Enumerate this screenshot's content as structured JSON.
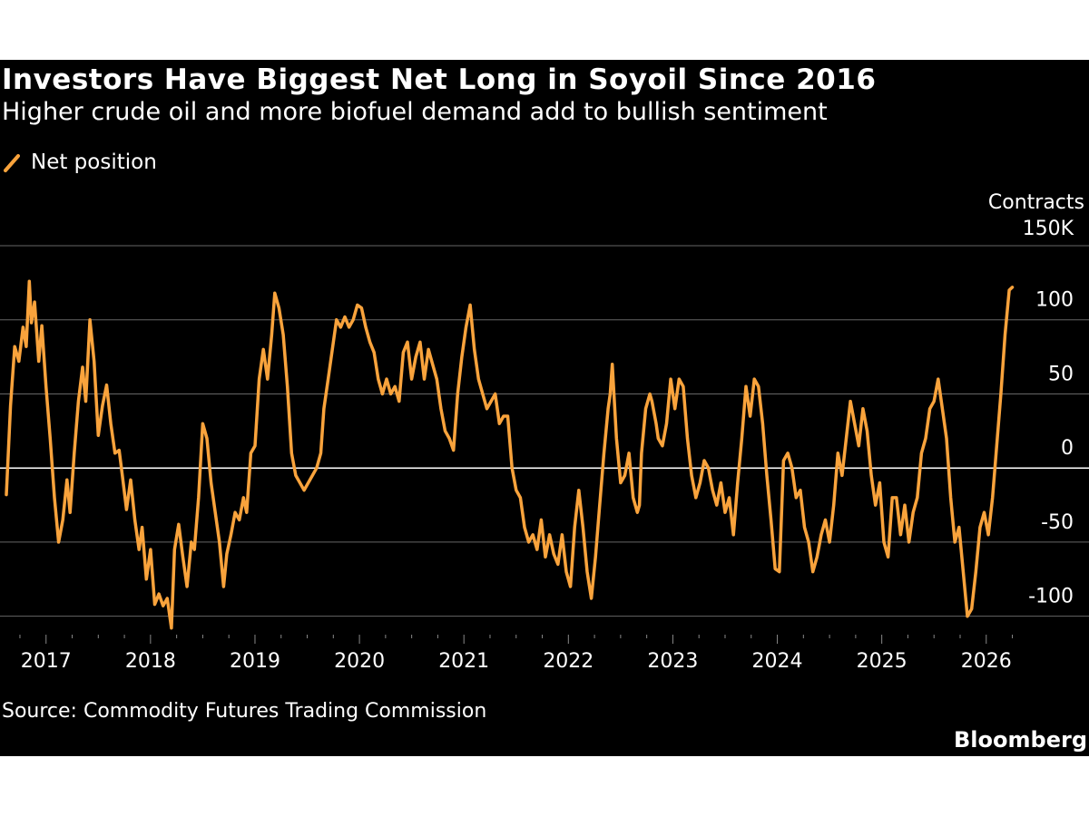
{
  "header": {
    "title": "Investors Have Biggest Net Long in Soyoil Since 2016",
    "subtitle": "Higher crude oil and more biofuel demand add to bullish sentiment"
  },
  "legend": {
    "label": "Net position",
    "color": "#f9a33c"
  },
  "footer": {
    "source": "Source: Commodity Futures Trading Commission",
    "brand": "Bloomberg"
  },
  "colors": {
    "background": "#000000",
    "line": "#f9a33c",
    "grid": "#666666",
    "zero_line": "#ffffff",
    "text": "#ffffff"
  },
  "chart_data": {
    "type": "line",
    "title": "Investors Have Biggest Net Long in Soyoil Since 2016",
    "subtitle": "Higher crude oil and more biofuel demand add to bullish sentiment",
    "xlabel": "",
    "ylabel": "Contracts",
    "ylim": [
      -110,
      150
    ],
    "xlim": [
      2016.62,
      2026.28
    ],
    "y_ticks": [
      {
        "value": 150,
        "label": "150K"
      },
      {
        "value": 100,
        "label": "100"
      },
      {
        "value": 50,
        "label": "50"
      },
      {
        "value": 0,
        "label": "0"
      },
      {
        "value": -50,
        "label": "-50"
      },
      {
        "value": -100,
        "label": "-100"
      }
    ],
    "x_ticks": [
      {
        "value": 2017,
        "label": "2017"
      },
      {
        "value": 2018,
        "label": "2018"
      },
      {
        "value": 2019,
        "label": "2019"
      },
      {
        "value": 2020,
        "label": "2020"
      },
      {
        "value": 2021,
        "label": "2021"
      },
      {
        "value": 2022,
        "label": "2022"
      },
      {
        "value": 2023,
        "label": "2023"
      },
      {
        "value": 2024,
        "label": "2024"
      },
      {
        "value": 2025,
        "label": "2025"
      },
      {
        "value": 2026,
        "label": "2026"
      }
    ],
    "grid": true,
    "legend_position": "top-left",
    "series": [
      {
        "name": "Net position",
        "unit": "thousand contracts",
        "points": [
          [
            2016.62,
            -18
          ],
          [
            2016.66,
            42
          ],
          [
            2016.7,
            82
          ],
          [
            2016.74,
            72
          ],
          [
            2016.78,
            95
          ],
          [
            2016.81,
            82
          ],
          [
            2016.84,
            126
          ],
          [
            2016.86,
            98
          ],
          [
            2016.89,
            112
          ],
          [
            2016.93,
            72
          ],
          [
            2016.96,
            96
          ],
          [
            2017.0,
            55
          ],
          [
            2017.04,
            20
          ],
          [
            2017.08,
            -20
          ],
          [
            2017.12,
            -50
          ],
          [
            2017.16,
            -35
          ],
          [
            2017.2,
            -8
          ],
          [
            2017.23,
            -30
          ],
          [
            2017.27,
            10
          ],
          [
            2017.31,
            45
          ],
          [
            2017.35,
            68
          ],
          [
            2017.38,
            45
          ],
          [
            2017.42,
            100
          ],
          [
            2017.46,
            72
          ],
          [
            2017.5,
            22
          ],
          [
            2017.54,
            42
          ],
          [
            2017.58,
            56
          ],
          [
            2017.62,
            30
          ],
          [
            2017.66,
            10
          ],
          [
            2017.7,
            12
          ],
          [
            2017.73,
            -5
          ],
          [
            2017.77,
            -28
          ],
          [
            2017.81,
            -8
          ],
          [
            2017.85,
            -35
          ],
          [
            2017.89,
            -55
          ],
          [
            2017.92,
            -40
          ],
          [
            2017.96,
            -75
          ],
          [
            2018.0,
            -55
          ],
          [
            2018.04,
            -92
          ],
          [
            2018.08,
            -85
          ],
          [
            2018.12,
            -93
          ],
          [
            2018.16,
            -88
          ],
          [
            2018.2,
            -108
          ],
          [
            2018.23,
            -55
          ],
          [
            2018.27,
            -38
          ],
          [
            2018.31,
            -60
          ],
          [
            2018.35,
            -80
          ],
          [
            2018.39,
            -50
          ],
          [
            2018.42,
            -55
          ],
          [
            2018.46,
            -20
          ],
          [
            2018.5,
            30
          ],
          [
            2018.54,
            20
          ],
          [
            2018.58,
            -10
          ],
          [
            2018.62,
            -30
          ],
          [
            2018.66,
            -50
          ],
          [
            2018.7,
            -80
          ],
          [
            2018.73,
            -58
          ],
          [
            2018.77,
            -45
          ],
          [
            2018.81,
            -30
          ],
          [
            2018.85,
            -35
          ],
          [
            2018.89,
            -20
          ],
          [
            2018.92,
            -30
          ],
          [
            2018.96,
            10
          ],
          [
            2019.0,
            15
          ],
          [
            2019.04,
            60
          ],
          [
            2019.08,
            80
          ],
          [
            2019.12,
            60
          ],
          [
            2019.16,
            90
          ],
          [
            2019.19,
            118
          ],
          [
            2019.23,
            108
          ],
          [
            2019.27,
            90
          ],
          [
            2019.31,
            55
          ],
          [
            2019.35,
            10
          ],
          [
            2019.39,
            -5
          ],
          [
            2019.43,
            -10
          ],
          [
            2019.47,
            -15
          ],
          [
            2019.51,
            -10
          ],
          [
            2019.55,
            -5
          ],
          [
            2019.59,
            0
          ],
          [
            2019.63,
            10
          ],
          [
            2019.66,
            40
          ],
          [
            2019.7,
            60
          ],
          [
            2019.74,
            80
          ],
          [
            2019.78,
            100
          ],
          [
            2019.82,
            95
          ],
          [
            2019.86,
            102
          ],
          [
            2019.9,
            95
          ],
          [
            2019.94,
            100
          ],
          [
            2019.98,
            110
          ],
          [
            2020.02,
            108
          ],
          [
            2020.06,
            95
          ],
          [
            2020.1,
            85
          ],
          [
            2020.14,
            78
          ],
          [
            2020.18,
            60
          ],
          [
            2020.22,
            50
          ],
          [
            2020.26,
            60
          ],
          [
            2020.3,
            50
          ],
          [
            2020.34,
            55
          ],
          [
            2020.38,
            45
          ],
          [
            2020.42,
            78
          ],
          [
            2020.46,
            85
          ],
          [
            2020.5,
            60
          ],
          [
            2020.54,
            75
          ],
          [
            2020.58,
            85
          ],
          [
            2020.62,
            60
          ],
          [
            2020.66,
            80
          ],
          [
            2020.7,
            70
          ],
          [
            2020.74,
            60
          ],
          [
            2020.78,
            40
          ],
          [
            2020.82,
            25
          ],
          [
            2020.86,
            20
          ],
          [
            2020.9,
            12
          ],
          [
            2020.94,
            50
          ],
          [
            2020.98,
            75
          ],
          [
            2021.02,
            95
          ],
          [
            2021.06,
            110
          ],
          [
            2021.08,
            95
          ],
          [
            2021.1,
            80
          ],
          [
            2021.14,
            60
          ],
          [
            2021.18,
            50
          ],
          [
            2021.22,
            40
          ],
          [
            2021.26,
            45
          ],
          [
            2021.3,
            50
          ],
          [
            2021.34,
            30
          ],
          [
            2021.38,
            35
          ],
          [
            2021.42,
            35
          ],
          [
            2021.46,
            0
          ],
          [
            2021.5,
            -15
          ],
          [
            2021.54,
            -20
          ],
          [
            2021.58,
            -40
          ],
          [
            2021.62,
            -50
          ],
          [
            2021.66,
            -45
          ],
          [
            2021.7,
            -55
          ],
          [
            2021.74,
            -35
          ],
          [
            2021.78,
            -60
          ],
          [
            2021.82,
            -45
          ],
          [
            2021.86,
            -58
          ],
          [
            2021.9,
            -65
          ],
          [
            2021.94,
            -45
          ],
          [
            2021.98,
            -70
          ],
          [
            2022.02,
            -80
          ],
          [
            2022.06,
            -40
          ],
          [
            2022.1,
            -15
          ],
          [
            2022.14,
            -40
          ],
          [
            2022.18,
            -70
          ],
          [
            2022.22,
            -88
          ],
          [
            2022.26,
            -60
          ],
          [
            2022.3,
            -25
          ],
          [
            2022.34,
            10
          ],
          [
            2022.38,
            40
          ],
          [
            2022.4,
            50
          ],
          [
            2022.42,
            70
          ],
          [
            2022.46,
            20
          ],
          [
            2022.5,
            -10
          ],
          [
            2022.54,
            -5
          ],
          [
            2022.58,
            10
          ],
          [
            2022.62,
            -20
          ],
          [
            2022.66,
            -30
          ],
          [
            2022.68,
            -25
          ],
          [
            2022.7,
            10
          ],
          [
            2022.74,
            40
          ],
          [
            2022.78,
            50
          ],
          [
            2022.8,
            45
          ],
          [
            2022.84,
            30
          ],
          [
            2022.86,
            20
          ],
          [
            2022.9,
            15
          ],
          [
            2022.94,
            30
          ],
          [
            2022.98,
            60
          ],
          [
            2023.02,
            40
          ],
          [
            2023.06,
            60
          ],
          [
            2023.1,
            55
          ],
          [
            2023.14,
            20
          ],
          [
            2023.18,
            -5
          ],
          [
            2023.22,
            -20
          ],
          [
            2023.26,
            -10
          ],
          [
            2023.3,
            5
          ],
          [
            2023.34,
            0
          ],
          [
            2023.38,
            -15
          ],
          [
            2023.42,
            -25
          ],
          [
            2023.46,
            -10
          ],
          [
            2023.5,
            -30
          ],
          [
            2023.54,
            -20
          ],
          [
            2023.58,
            -45
          ],
          [
            2023.62,
            -10
          ],
          [
            2023.66,
            20
          ],
          [
            2023.7,
            55
          ],
          [
            2023.74,
            35
          ],
          [
            2023.78,
            60
          ],
          [
            2023.82,
            55
          ],
          [
            2023.86,
            30
          ],
          [
            2023.9,
            -5
          ],
          [
            2023.94,
            -35
          ],
          [
            2023.98,
            -68
          ],
          [
            2024.02,
            -70
          ],
          [
            2024.06,
            5
          ],
          [
            2024.1,
            10
          ],
          [
            2024.14,
            0
          ],
          [
            2024.18,
            -20
          ],
          [
            2024.22,
            -15
          ],
          [
            2024.26,
            -40
          ],
          [
            2024.3,
            -50
          ],
          [
            2024.34,
            -70
          ],
          [
            2024.38,
            -60
          ],
          [
            2024.42,
            -45
          ],
          [
            2024.46,
            -35
          ],
          [
            2024.5,
            -50
          ],
          [
            2024.54,
            -25
          ],
          [
            2024.58,
            10
          ],
          [
            2024.62,
            -5
          ],
          [
            2024.66,
            20
          ],
          [
            2024.7,
            45
          ],
          [
            2024.74,
            30
          ],
          [
            2024.78,
            15
          ],
          [
            2024.82,
            40
          ],
          [
            2024.86,
            25
          ],
          [
            2024.9,
            -5
          ],
          [
            2024.94,
            -25
          ],
          [
            2024.98,
            -10
          ],
          [
            2025.02,
            -50
          ],
          [
            2025.06,
            -60
          ],
          [
            2025.1,
            -20
          ],
          [
            2025.14,
            -20
          ],
          [
            2025.18,
            -45
          ],
          [
            2025.22,
            -25
          ],
          [
            2025.26,
            -50
          ],
          [
            2025.3,
            -30
          ],
          [
            2025.34,
            -20
          ],
          [
            2025.38,
            10
          ],
          [
            2025.42,
            20
          ],
          [
            2025.46,
            40
          ],
          [
            2025.5,
            45
          ],
          [
            2025.54,
            60
          ],
          [
            2025.58,
            40
          ],
          [
            2025.62,
            20
          ],
          [
            2025.66,
            -20
          ],
          [
            2025.7,
            -50
          ],
          [
            2025.74,
            -40
          ],
          [
            2025.78,
            -70
          ],
          [
            2025.82,
            -100
          ],
          [
            2025.86,
            -95
          ],
          [
            2025.9,
            -70
          ],
          [
            2025.94,
            -40
          ],
          [
            2025.98,
            -30
          ],
          [
            2026.02,
            -45
          ],
          [
            2026.06,
            -20
          ],
          [
            2026.1,
            15
          ],
          [
            2026.14,
            50
          ],
          [
            2026.18,
            90
          ],
          [
            2026.22,
            120
          ],
          [
            2026.25,
            122
          ]
        ]
      }
    ]
  }
}
